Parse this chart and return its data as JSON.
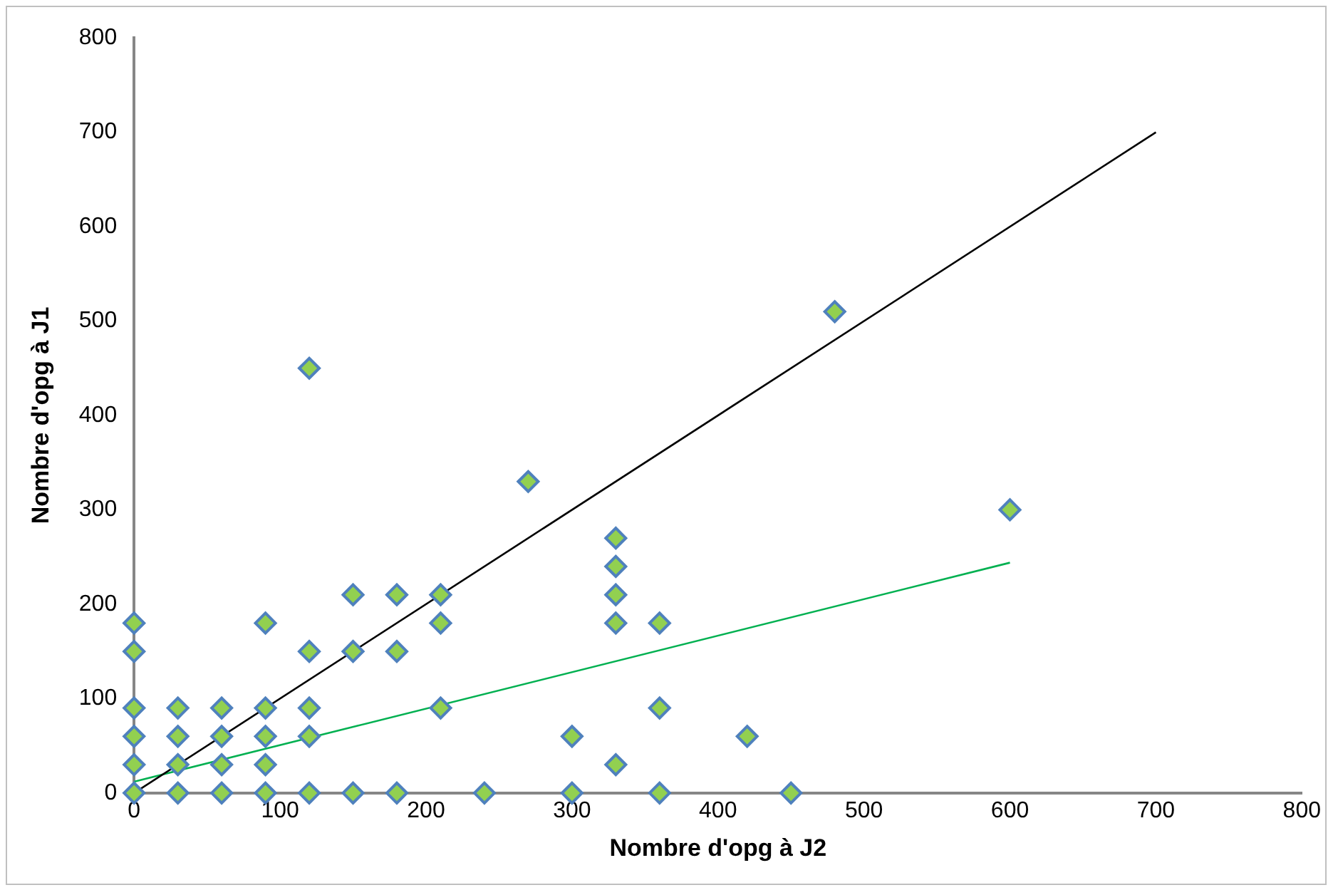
{
  "chart_data": {
    "type": "scatter",
    "xlabel": "Nombre d'opg à J2",
    "ylabel": "Nombre d'opg à J1",
    "xlim": [
      0,
      800
    ],
    "ylim": [
      0,
      800
    ],
    "xticks": [
      0,
      100,
      200,
      300,
      400,
      500,
      600,
      700,
      800
    ],
    "yticks": [
      0,
      100,
      200,
      300,
      400,
      500,
      600,
      700,
      800
    ],
    "grid": false,
    "legend": false,
    "marker": "diamond",
    "series": [
      {
        "color": "#92d050",
        "x": [
          0,
          0,
          0,
          0,
          0,
          0,
          30,
          30,
          30,
          30,
          60,
          60,
          60,
          60,
          90,
          90,
          90,
          90,
          90,
          120,
          120,
          120,
          120,
          120,
          150,
          150,
          150,
          180,
          180,
          180,
          210,
          210,
          210,
          240,
          270,
          300,
          300,
          330,
          330,
          330,
          330,
          330,
          360,
          360,
          360,
          420,
          450,
          480,
          600
        ],
        "values": [
          0,
          30,
          60,
          90,
          150,
          180,
          0,
          30,
          60,
          90,
          0,
          30,
          60,
          90,
          0,
          30,
          60,
          90,
          180,
          0,
          60,
          90,
          150,
          450,
          0,
          150,
          210,
          0,
          150,
          210,
          90,
          180,
          210,
          0,
          330,
          0,
          60,
          30,
          180,
          210,
          240,
          270,
          0,
          90,
          180,
          60,
          0,
          510,
          300
        ]
      },
      {
        "type": "line",
        "color": "#000000",
        "x": [
          0,
          700
        ],
        "values": [
          0,
          700
        ],
        "marker": "none",
        "line_style": "solid"
      },
      {
        "type": "line",
        "color": "#00b050",
        "x": [
          0,
          600
        ],
        "values": [
          12,
          244
        ],
        "marker": "none",
        "line_style": "solid"
      }
    ]
  }
}
